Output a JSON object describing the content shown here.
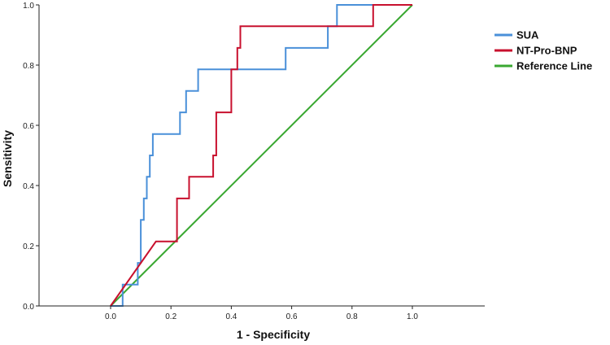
{
  "chart_data": {
    "type": "line",
    "title": "",
    "xlabel": "1 - Specificity",
    "ylabel": "Sensitivity",
    "xlim": [
      -0.26,
      1.24
    ],
    "ylim": [
      0,
      1
    ],
    "x_ticks": [
      "0.0",
      "0.2",
      "0.4",
      "0.6",
      "0.8",
      "1.0"
    ],
    "y_ticks": [
      "0.0",
      "0.2",
      "0.4",
      "0.6",
      "0.8",
      "1.0"
    ],
    "grid": false,
    "legend_position": "top-right",
    "series": [
      {
        "name": "SUA",
        "color": "#4a90d9",
        "x": [
          0,
          0.04,
          0.04,
          0.09,
          0.09,
          0.1,
          0.1,
          0.11,
          0.11,
          0.12,
          0.12,
          0.13,
          0.13,
          0.14,
          0.14,
          0.23,
          0.23,
          0.25,
          0.25,
          0.29,
          0.29,
          0.34,
          0.34,
          0.58,
          0.58,
          0.72,
          0.72,
          0.75,
          0.75,
          1.0
        ],
        "y": [
          0,
          0,
          0.071,
          0.071,
          0.143,
          0.143,
          0.286,
          0.286,
          0.357,
          0.357,
          0.429,
          0.429,
          0.5,
          0.5,
          0.571,
          0.571,
          0.643,
          0.643,
          0.714,
          0.714,
          0.786,
          0.786,
          0.786,
          0.786,
          0.857,
          0.857,
          0.929,
          0.929,
          1.0,
          1.0
        ]
      },
      {
        "name": "NT-Pro-BNP",
        "color": "#c8102e",
        "x": [
          0,
          0.15,
          0.22,
          0.22,
          0.26,
          0.26,
          0.34,
          0.34,
          0.35,
          0.35,
          0.4,
          0.4,
          0.42,
          0.42,
          0.43,
          0.43,
          0.87,
          0.87,
          1.0
        ],
        "y": [
          0,
          0.214,
          0.214,
          0.357,
          0.357,
          0.429,
          0.429,
          0.5,
          0.5,
          0.643,
          0.643,
          0.786,
          0.786,
          0.857,
          0.857,
          0.929,
          0.929,
          1.0,
          1.0
        ]
      },
      {
        "name": "Reference Line",
        "color": "#3aa832",
        "x": [
          0,
          1
        ],
        "y": [
          0,
          1
        ]
      }
    ]
  }
}
